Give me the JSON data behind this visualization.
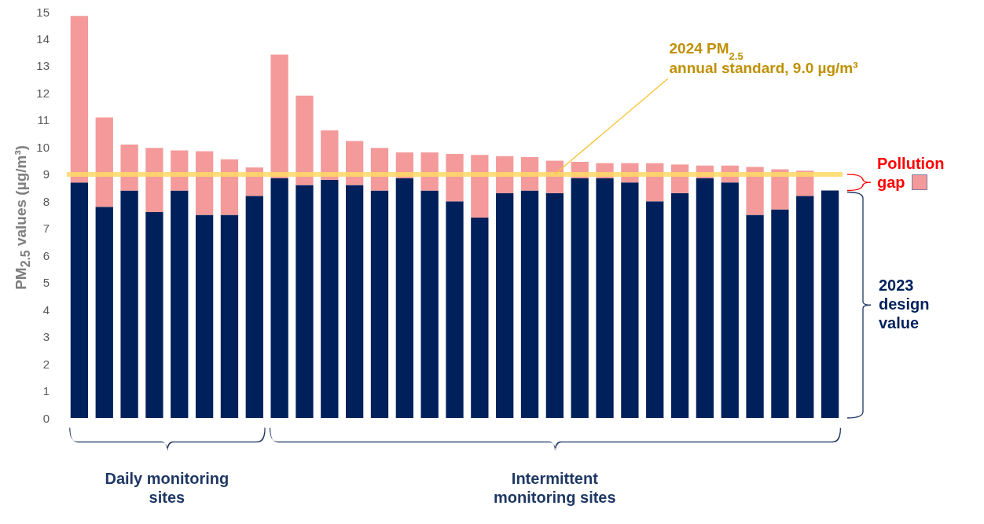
{
  "chart_data": {
    "type": "bar",
    "stacked": true,
    "ylabel": "PM$_{2.5}$ values (µg/m³)",
    "categories": [
      null,
      null,
      null,
      null,
      null,
      null,
      null,
      null,
      null,
      null,
      null,
      null,
      null,
      null,
      null,
      null,
      null,
      null,
      null,
      null,
      null,
      null,
      null,
      null,
      null,
      null,
      null,
      null,
      null,
      null,
      null
    ],
    "series": [
      {
        "name": "2023 design value",
        "color": "#00205b",
        "values": [
          8.7,
          7.8,
          8.4,
          7.6,
          8.4,
          7.5,
          7.5,
          8.2,
          8.85,
          8.6,
          8.8,
          8.6,
          8.4,
          8.85,
          8.4,
          8.0,
          7.4,
          8.3,
          8.4,
          8.3,
          8.85,
          8.85,
          8.7,
          8.0,
          8.3,
          8.85,
          8.7,
          7.5,
          7.7,
          8.2,
          8.4
        ]
      },
      {
        "name": "Pollution gap",
        "color": "#f49a9a",
        "values": [
          6.15,
          3.3,
          1.7,
          2.37,
          1.48,
          2.35,
          2.05,
          1.05,
          4.57,
          3.3,
          1.82,
          1.63,
          1.57,
          0.96,
          1.41,
          1.75,
          2.31,
          1.37,
          1.23,
          1.2,
          0.61,
          0.56,
          0.71,
          1.41,
          1.06,
          0.47,
          0.62,
          1.77,
          1.48,
          0.93,
          null
        ]
      }
    ],
    "ylim": [
      0,
      15
    ],
    "yticks": [
      0,
      1,
      2,
      3,
      4,
      5,
      6,
      7,
      8,
      9,
      10,
      11,
      12,
      13,
      14,
      15
    ],
    "grid": false,
    "legend": "right",
    "tick_labels": "y",
    "ref_lines": [
      {
        "axis": "y",
        "value": 9.0,
        "label": "2024 PM$_{2.5}$ annual standard, 9.0 µg/m³",
        "color": "#ffd966"
      }
    ],
    "annotations": [
      "Daily monitoring sites",
      "Intermittent monitoring sites"
    ]
  }
}
